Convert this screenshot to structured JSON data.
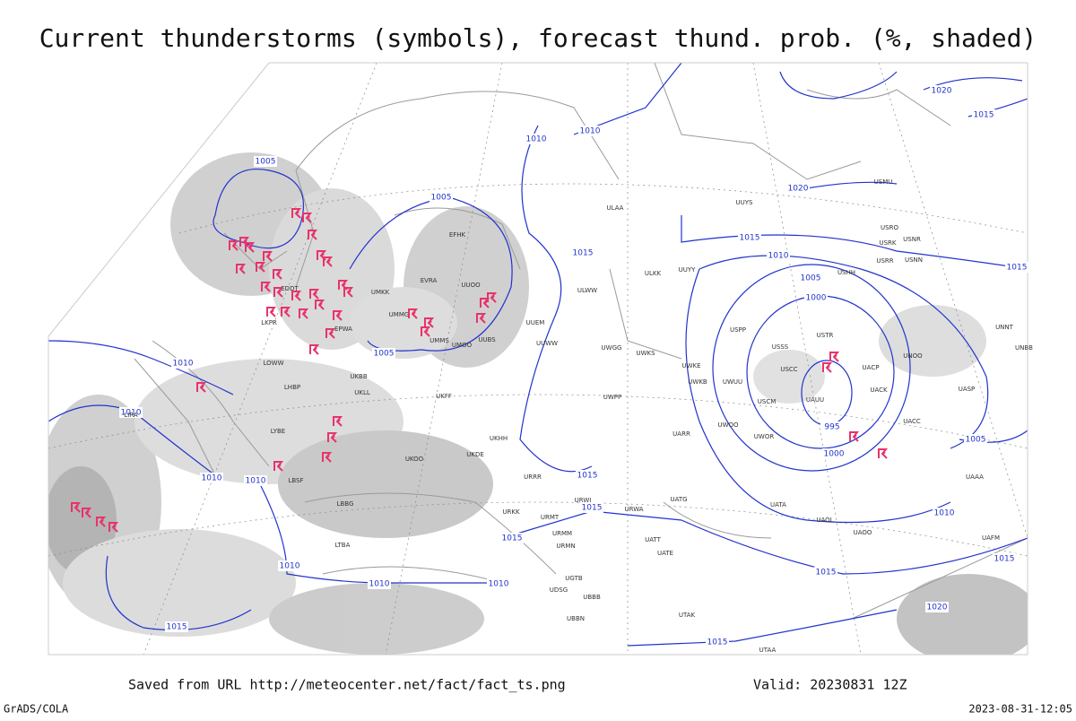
{
  "header": {
    "title": "Current thunderstorms (symbols), forecast thund. prob. (%, shaded)"
  },
  "footer": {
    "saved": "Saved from URL http://meteocenter.net/fact/fact_ts.png",
    "valid": "Valid: 20230831 12Z",
    "software": "GrADS/COLA",
    "timestamp": "2023-08-31-12:05"
  },
  "isobar_labels": [
    "1005",
    "1005",
    "1010",
    "1010",
    "1015",
    "1015",
    "1015",
    "1010",
    "1005",
    "1000",
    "995",
    "1000",
    "1005",
    "1010",
    "1010",
    "1010",
    "1010",
    "1010",
    "1010",
    "1010",
    "1015",
    "1015",
    "1015",
    "1015",
    "1015",
    "1015",
    "1020",
    "1015",
    "1020",
    "1010",
    "1005",
    "1020",
    "1015"
  ],
  "stations": [
    "ULAA",
    "ULKK",
    "UUYY",
    "ULWW",
    "UUEM",
    "UUWW",
    "UWGG",
    "UWKS",
    "UWPP",
    "UWKE",
    "UWKB",
    "UWUU",
    "USPP",
    "USSS",
    "USCC",
    "USCM",
    "USTR",
    "USHH",
    "UAUU",
    "UACP",
    "UACK",
    "UACC",
    "UASP",
    "UNOO",
    "UUYS",
    "USMU",
    "USRO",
    "USRK",
    "USNR",
    "USRR",
    "USNN",
    "UNNT",
    "UNBB",
    "EFHK",
    "EVRA",
    "UMKK",
    "UMMG",
    "UMMS",
    "UMOO",
    "UUBS",
    "UUOO",
    "EPWA",
    "EDDT",
    "LKPR",
    "LOWW",
    "LHBP",
    "LIRA",
    "LYBE",
    "LBSF",
    "LBBG",
    "LTBA",
    "UKBB",
    "UKLL",
    "UKOO",
    "UKFF",
    "UKDE",
    "UKHH",
    "URRR",
    "URKK",
    "URMT",
    "URMM",
    "URMN",
    "UATG",
    "UATT",
    "UATE",
    "URWI",
    "URWA",
    "UWOO",
    "UWOR",
    "UARR",
    "UATA",
    "UAOL",
    "UAOO",
    "UGTB",
    "UDSG",
    "UBBB",
    "UBBN",
    "UTAK",
    "UTAA",
    "UAAA",
    "UAFM"
  ]
}
